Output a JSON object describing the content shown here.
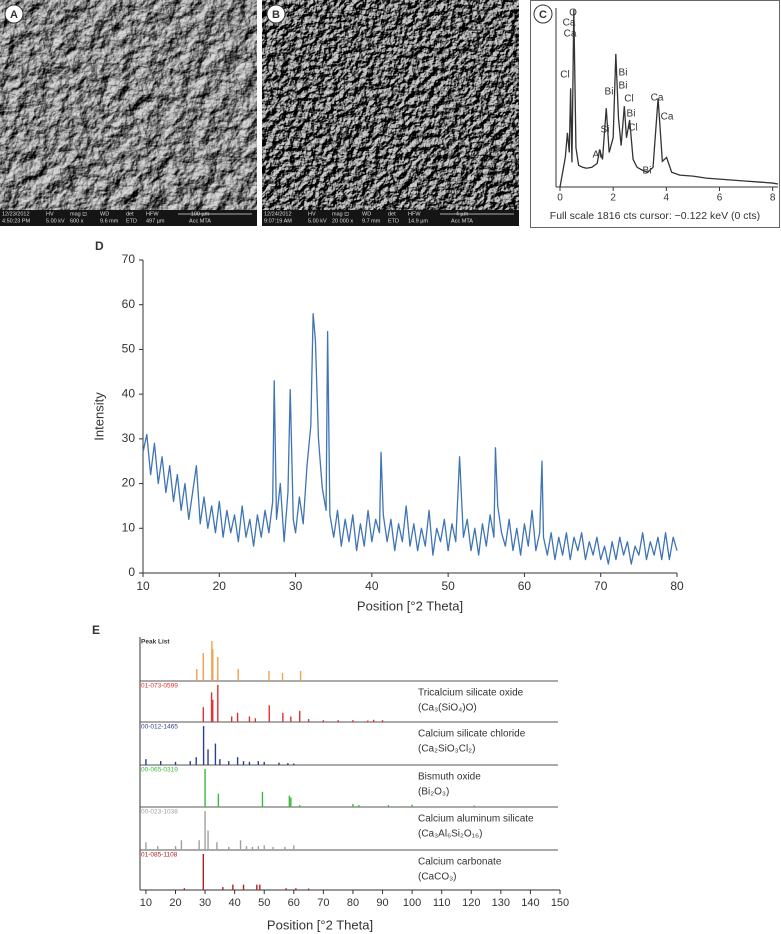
{
  "panels": {
    "A": {
      "label": "A",
      "info": [
        [
          "12/23/2012",
          "4:50:23 PM"
        ],
        [
          "HV",
          "5.00 kV"
        ],
        [
          "mag ⊡",
          "600 x"
        ],
        [
          "WD",
          "9.6 mm"
        ],
        [
          "det",
          "ETD"
        ],
        [
          "HFW",
          "497 µm"
        ],
        [
          "100 µm",
          "Acc MTA"
        ]
      ]
    },
    "B": {
      "label": "B",
      "info": [
        [
          "12/24/2012",
          "9:07:19 AM"
        ],
        [
          "HV",
          "5.00 kV"
        ],
        [
          "mag ⊡",
          "20 000 x"
        ],
        [
          "WD",
          "9.7 mm"
        ],
        [
          "det",
          "ETD"
        ],
        [
          "HFW",
          "14.9 µm"
        ],
        [
          "4 µm",
          "Acc MTA"
        ]
      ]
    }
  },
  "labels": {
    "C": "C",
    "D": "D",
    "E": "E"
  },
  "chart_data": [
    {
      "type": "line",
      "color": "#333333",
      "footer": "Full scale 1816 cts cursor: −0.122 keV (0 cts)",
      "x": [
        0,
        0.1,
        0.2,
        0.28,
        0.35,
        0.4,
        0.45,
        0.52,
        0.6,
        0.7,
        0.85,
        1.0,
        1.2,
        1.4,
        1.49,
        1.6,
        1.74,
        1.85,
        2.0,
        2.1,
        2.2,
        2.3,
        2.42,
        2.5,
        2.62,
        2.75,
        2.9,
        3.1,
        3.3,
        3.5,
        3.69,
        3.85,
        4.01,
        4.2,
        4.5,
        5,
        5.5,
        6,
        6.5,
        7,
        7.5,
        8,
        8.2
      ],
      "values": [
        0,
        150,
        300,
        550,
        350,
        1000,
        250,
        1800,
        400,
        220,
        200,
        190,
        200,
        240,
        380,
        280,
        800,
        350,
        500,
        1350,
        700,
        420,
        820,
        500,
        680,
        280,
        200,
        170,
        150,
        200,
        900,
        260,
        300,
        150,
        120,
        110,
        90,
        80,
        70,
        60,
        50,
        40,
        30
      ],
      "xlim": [
        -0.15,
        8.2
      ],
      "ylim": [
        0,
        1816
      ],
      "xticks": [
        0,
        2,
        4,
        6,
        8
      ],
      "annotations": [
        "O",
        "Ca",
        "Ca",
        "Cl",
        "Bi",
        "Bi",
        "Bi",
        "Cl",
        "Bi",
        "Cl",
        "Si",
        "Al",
        "Bi",
        "Ca",
        "Ca"
      ]
    },
    {
      "type": "line",
      "color": "#3f74b5",
      "xlabel": "Position [°2 Theta]",
      "ylabel": "Intensity",
      "x": [
        10,
        10.5,
        11,
        11.5,
        12,
        12.5,
        13,
        13.5,
        14,
        14.5,
        15,
        15.5,
        16,
        16.5,
        17,
        17.5,
        18,
        18.5,
        19,
        19.5,
        20,
        20.5,
        21,
        21.5,
        22,
        22.5,
        23,
        23.5,
        24,
        24.5,
        25,
        25.5,
        26,
        26.5,
        27,
        27.2,
        27.5,
        28,
        28.5,
        29,
        29.3,
        29.7,
        30,
        30.5,
        31,
        31.5,
        32,
        32.3,
        32.6,
        33,
        33.5,
        34,
        34.2,
        34.5,
        35,
        35.5,
        36,
        36.5,
        37,
        37.5,
        38,
        38.5,
        39,
        39.5,
        40,
        40.5,
        41,
        41.2,
        41.5,
        42,
        42.5,
        43,
        43.5,
        44,
        44.5,
        45,
        45.5,
        46,
        46.5,
        47,
        47.5,
        48,
        48.5,
        49,
        49.5,
        50,
        50.5,
        51,
        51.5,
        52,
        52.5,
        53,
        53.5,
        54,
        54.5,
        55,
        55.5,
        56,
        56.2,
        56.5,
        57,
        57.5,
        58,
        58.5,
        59,
        59.5,
        60,
        60.5,
        61,
        61.5,
        62,
        62.3,
        62.5,
        63,
        63.5,
        64,
        64.5,
        65,
        65.5,
        66,
        66.5,
        67,
        67.5,
        68,
        68.5,
        69,
        69.5,
        70,
        70.5,
        71,
        71.5,
        72,
        72.5,
        73,
        73.5,
        74,
        74.5,
        75,
        75.5,
        76,
        76.5,
        77,
        77.5,
        78,
        78.5,
        79,
        79.5,
        80
      ],
      "values": [
        27,
        31,
        22,
        29,
        20,
        26,
        18,
        24,
        16,
        22,
        14,
        20,
        12,
        18,
        24,
        11,
        17,
        10,
        15,
        9,
        16,
        8,
        14,
        9,
        13,
        7,
        15,
        8,
        12,
        6,
        13,
        8,
        14,
        9,
        16,
        43,
        12,
        20,
        7,
        18,
        41,
        12,
        9,
        17,
        11,
        24,
        33,
        58,
        52,
        30,
        19,
        14,
        54,
        13,
        8,
        14,
        6,
        12,
        7,
        13,
        5,
        11,
        6,
        14,
        7,
        12,
        9,
        27,
        13,
        7,
        12,
        5,
        11,
        7,
        15,
        6,
        11,
        5,
        10,
        6,
        14,
        4,
        10,
        7,
        12,
        5,
        11,
        7,
        26,
        8,
        12,
        5,
        10,
        4,
        11,
        6,
        13,
        8,
        28,
        15,
        9,
        6,
        12,
        5,
        10,
        4,
        11,
        6,
        14,
        5,
        9,
        25,
        8,
        4,
        9,
        3,
        8,
        4,
        9,
        3,
        8,
        5,
        9,
        3,
        7,
        4,
        8,
        3,
        6,
        2,
        7,
        3,
        8,
        4,
        7,
        2,
        6,
        4,
        9,
        3,
        7,
        4,
        8,
        3,
        9,
        3,
        8,
        5
      ],
      "xlim": [
        10,
        80
      ],
      "ylim": [
        0,
        70
      ],
      "xticks": [
        10,
        20,
        30,
        40,
        50,
        60,
        70,
        80
      ],
      "yticks": [
        0,
        10,
        20,
        30,
        40,
        50,
        60,
        70
      ]
    },
    {
      "type": "stick",
      "xlabel": "Position [°2 Theta]",
      "xlim": [
        8,
        150
      ],
      "xticks": [
        10,
        20,
        30,
        40,
        50,
        60,
        70,
        80,
        90,
        100,
        110,
        120,
        130,
        140,
        150
      ],
      "series": [
        {
          "name": "Peak List",
          "color": "#f0a050",
          "x": [
            27.2,
            29.4,
            32.3,
            32.6,
            34.3,
            41.2,
            51.6,
            56.2,
            62.3
          ],
          "values": [
            30,
            70,
            100,
            80,
            60,
            30,
            25,
            20,
            25
          ]
        },
        {
          "name": "Tricalcium silicate oxide",
          "code": "01-073-0599",
          "formula": "(Ca₃(SiO₄)O)",
          "color": "#e03030",
          "x": [
            29.4,
            32.2,
            32.6,
            34.3,
            39,
            41,
            45,
            47,
            51.7,
            56.3,
            59,
            62,
            65,
            70,
            75,
            80,
            85,
            87,
            90
          ],
          "values": [
            40,
            80,
            60,
            100,
            15,
            25,
            15,
            10,
            45,
            25,
            15,
            30,
            8,
            5,
            5,
            5,
            4,
            6,
            5
          ]
        },
        {
          "name": "Calcium silicate chloride",
          "code": "00-012-1465",
          "formula": "(Ca₂SiO₃Cl₂)",
          "color": "#2b3f8f",
          "x": [
            10,
            15,
            20,
            25,
            27,
            29.5,
            31,
            33.5,
            35,
            38,
            41,
            43,
            45,
            48,
            50,
            55,
            58,
            60
          ],
          "values": [
            15,
            10,
            8,
            10,
            20,
            100,
            40,
            55,
            15,
            10,
            20,
            10,
            8,
            10,
            8,
            6,
            5,
            4
          ]
        },
        {
          "name": "Bismuth oxide",
          "code": "00-065-0319",
          "formula": "(Bi₂O₃)",
          "color": "#3cb83c",
          "x": [
            30,
            34.5,
            49.4,
            58.5,
            59,
            62,
            80,
            82,
            92,
            100,
            121
          ],
          "values": [
            100,
            35,
            40,
            30,
            25,
            5,
            8,
            5,
            5,
            6,
            4
          ]
        },
        {
          "name": "Calcium aluminum silicate",
          "code": "00-023-1038",
          "formula": "(Ca₃Al₆Si₂O₁₆)",
          "color": "#a0a0a0",
          "x": [
            10,
            14,
            20,
            22,
            28,
            30,
            31,
            34,
            38,
            42,
            44,
            46,
            48,
            50,
            53,
            57,
            60
          ],
          "values": [
            20,
            10,
            10,
            25,
            25,
            100,
            50,
            20,
            8,
            25,
            10,
            8,
            10,
            12,
            8,
            8,
            12
          ]
        },
        {
          "name": "Calcium carbonate",
          "code": "01-085-1108",
          "formula": "(CaCO₃)",
          "color": "#b02020",
          "x": [
            23,
            29.4,
            36,
            39.4,
            43,
            47.5,
            48.5,
            57.4,
            60.7,
            65
          ],
          "values": [
            5,
            100,
            8,
            15,
            15,
            15,
            15,
            5,
            5,
            4
          ]
        }
      ]
    }
  ]
}
